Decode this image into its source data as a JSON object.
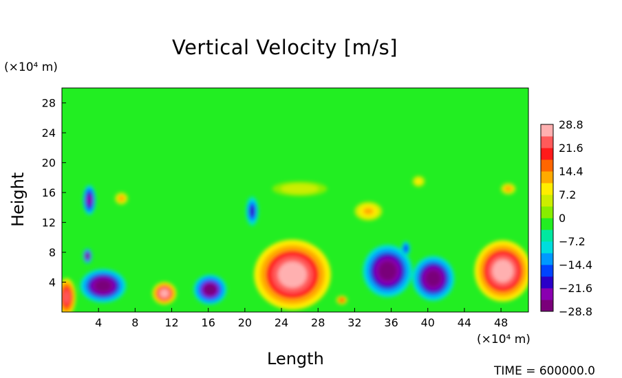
{
  "chart_data": {
    "type": "heatmap",
    "title": "Vertical Velocity [m/s]",
    "xlabel": "Length",
    "ylabel": "Height",
    "x_unit": "(×10⁴ m)",
    "y_unit": "(×10⁴ m)",
    "xlim": [
      0,
      51
    ],
    "ylim": [
      0,
      30
    ],
    "x_ticks": [
      4,
      8,
      12,
      16,
      20,
      24,
      28,
      32,
      36,
      40,
      44,
      48
    ],
    "y_ticks": [
      4,
      8,
      12,
      16,
      20,
      24,
      28
    ],
    "x_tick_labels": [
      "4",
      "8",
      "12",
      "16",
      "20",
      "24",
      "28",
      "32",
      "36",
      "40",
      "44",
      "48"
    ],
    "y_tick_labels": [
      "4",
      "8",
      "12",
      "16",
      "20",
      "24",
      "28"
    ],
    "colorbar": {
      "min": -28.8,
      "max": 28.8,
      "labels": [
        "28.8",
        "21.6",
        "14.4",
        "7.2",
        "0",
        "−7.2",
        "−14.4",
        "−21.6",
        "−28.8"
      ],
      "colors": [
        "#7a007a",
        "#8a00b0",
        "#2a00c8",
        "#0044ff",
        "#0099ff",
        "#00dddd",
        "#00e8a0",
        "#22ee22",
        "#88ee00",
        "#ccee00",
        "#ffee00",
        "#ffaa00",
        "#ff6600",
        "#ff1a1a",
        "#ff5a5a",
        "#ffb0b0"
      ]
    },
    "cells": [
      {
        "x": 0.5,
        "y": 2,
        "w": 2,
        "h": 5,
        "value": 25
      },
      {
        "x": 4.5,
        "y": 3.5,
        "w": 5,
        "h": 4.5,
        "value": -28
      },
      {
        "x": 2.8,
        "y": 7.5,
        "w": 1,
        "h": 2,
        "value": -26
      },
      {
        "x": 3,
        "y": 15,
        "w": 1.4,
        "h": 4,
        "value": -22
      },
      {
        "x": 11.2,
        "y": 2.5,
        "w": 2.6,
        "h": 3,
        "value": 26
      },
      {
        "x": 16.2,
        "y": 3,
        "w": 3.6,
        "h": 4,
        "value": -26
      },
      {
        "x": 20.8,
        "y": 13.5,
        "w": 1.4,
        "h": 4,
        "value": -20
      },
      {
        "x": 25.2,
        "y": 5,
        "w": 8.4,
        "h": 9.4,
        "value": 28
      },
      {
        "x": 30.6,
        "y": 1.6,
        "w": 1.2,
        "h": 1.2,
        "value": 18
      },
      {
        "x": 35.6,
        "y": 5.5,
        "w": 5.4,
        "h": 7,
        "value": -28
      },
      {
        "x": 40.6,
        "y": 4.5,
        "w": 4.6,
        "h": 6,
        "value": -27
      },
      {
        "x": 37.6,
        "y": 8.5,
        "w": 1,
        "h": 2,
        "value": -18
      },
      {
        "x": 48.2,
        "y": 5.5,
        "w": 6.2,
        "h": 8.2,
        "value": 27
      },
      {
        "x": 6.5,
        "y": 15.2,
        "w": 1.4,
        "h": 1.6,
        "value": 14
      },
      {
        "x": 26,
        "y": 16.5,
        "w": 6,
        "h": 2,
        "value": 6
      },
      {
        "x": 33.5,
        "y": 13.5,
        "w": 3,
        "h": 2.5,
        "value": 12
      },
      {
        "x": 39,
        "y": 17.5,
        "w": 1.4,
        "h": 1.5,
        "value": 10
      },
      {
        "x": 48.8,
        "y": 16.5,
        "w": 1.6,
        "h": 1.5,
        "value": 14
      }
    ]
  },
  "time_label": "TIME = 600000.0"
}
